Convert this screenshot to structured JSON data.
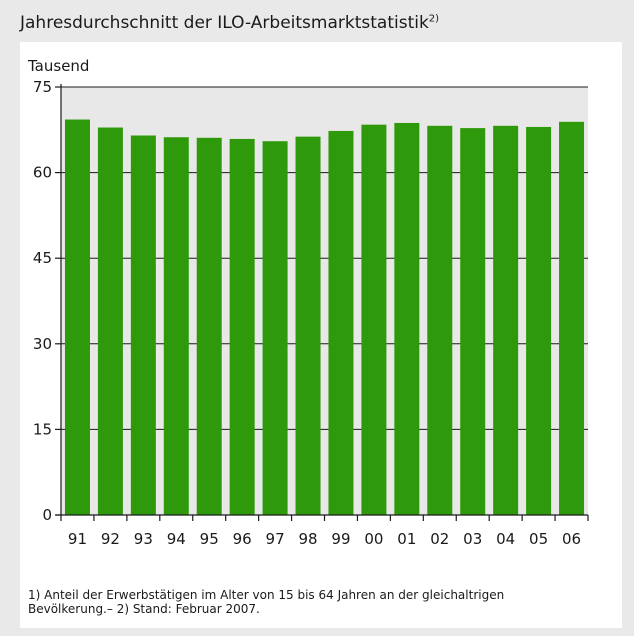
{
  "title": "Jahresdurchschnitt der ILO-Arbeitsmarktstatistik",
  "title_sup": "2)",
  "footnote": {
    "line1": "1) Anteil der Erwerbstätigen im Alter von 15 bis 64 Jahren an der gleichaltrigen",
    "line2": "Bevölkerung.– 2) Stand: Februar 2007."
  },
  "colors": {
    "bar": "#2e9a0b",
    "plot_background": "#e8e8e8",
    "outer_background": "#e9e9e9",
    "grid": "#1a1a1a"
  },
  "chart_data": {
    "type": "bar",
    "title": "Jahresdurchschnitt der ILO-Arbeitsmarktstatistik",
    "ylabel": "Tausend",
    "xlabel": "",
    "categories": [
      "91",
      "92",
      "93",
      "94",
      "95",
      "96",
      "97",
      "98",
      "99",
      "00",
      "01",
      "02",
      "03",
      "04",
      "05",
      "06"
    ],
    "values": [
      69.3,
      67.9,
      66.5,
      66.2,
      66.1,
      65.9,
      65.5,
      66.3,
      67.3,
      68.4,
      68.7,
      68.2,
      67.8,
      68.2,
      68.0,
      68.9
    ],
    "ylim": [
      0,
      75
    ],
    "yticks": [
      0,
      15,
      30,
      45,
      60,
      75
    ],
    "grid": true,
    "legend": "none"
  }
}
